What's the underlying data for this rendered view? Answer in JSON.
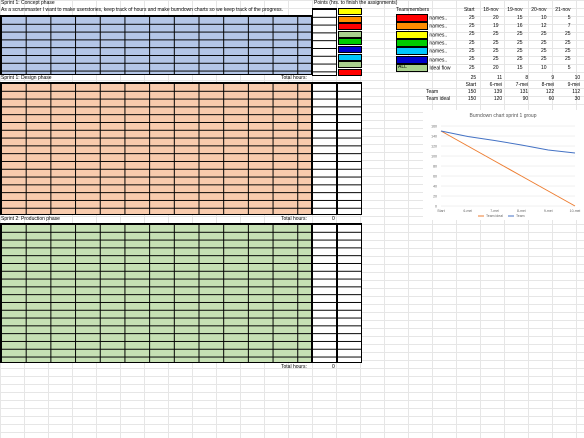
{
  "sheet": {
    "sprint1_concept_title": "Sprint 1: Concept phase",
    "user_story": "As a scrummaster I want to make userstories, keep track of hours and make burndown charts so we keep track of the progress.",
    "points_header": "Points (hrs. to finish the assignments)",
    "sprint1_design_title": "Sprint 1: Design phase",
    "sprint2_production_title": "Sprint 2: Production phase",
    "total_hours_label": "Total hours:",
    "design_total_value": "",
    "production_total_value": "0",
    "bottom_total_value": "0"
  },
  "team_table": {
    "headers": [
      "Teammembers",
      "Start",
      "18-nov",
      "19-nov",
      "20-nov",
      "21-nov"
    ],
    "rows": [
      {
        "name": "names..",
        "color": "#ff0000",
        "values": [
          "25",
          "20",
          "15",
          "10",
          "5"
        ]
      },
      {
        "name": "names..",
        "color": "#ff8c00",
        "values": [
          "25",
          "19",
          "16",
          "12",
          "7"
        ]
      },
      {
        "name": "names..",
        "color": "#ffff00",
        "values": [
          "25",
          "25",
          "25",
          "25",
          "25"
        ]
      },
      {
        "name": "names..",
        "color": "#00cc00",
        "values": [
          "25",
          "25",
          "25",
          "25",
          "25"
        ]
      },
      {
        "name": "names..",
        "color": "#00c8ff",
        "values": [
          "25",
          "25",
          "25",
          "25",
          "25"
        ]
      },
      {
        "name": "names..",
        "color": "#0000cc",
        "values": [
          "25",
          "25",
          "25",
          "25",
          "25"
        ]
      },
      {
        "name": "ALL",
        "color": "#a8d08d",
        "label2": "Ideal flow",
        "values": [
          "25",
          "20",
          "15",
          "10",
          "5"
        ]
      }
    ]
  },
  "summary_table": {
    "top_row": [
      "25",
      "11",
      "8",
      "9",
      "10"
    ],
    "headers": [
      "Start",
      "6-mei",
      "7-mei",
      "8-mei",
      "9-mei"
    ],
    "rows": [
      {
        "label": "Team",
        "values": [
          "150",
          "139",
          "131",
          "122",
          "112"
        ]
      },
      {
        "label": "Team ideal",
        "values": [
          "150",
          "120",
          "90",
          "60",
          "30"
        ]
      }
    ]
  },
  "chart_data": {
    "type": "line",
    "title": "Burndown chart sprint 1 group",
    "categories": [
      "Start",
      "6-mei",
      "7-mei",
      "8-mei",
      "9-mei",
      "10-mei"
    ],
    "series": [
      {
        "name": "Team ideal",
        "color": "#ed7d31",
        "values": [
          150,
          120,
          90,
          60,
          30,
          0
        ]
      },
      {
        "name": "Team",
        "color": "#4472c4",
        "values": [
          150,
          139,
          131,
          122,
          112,
          106
        ]
      }
    ],
    "ylim": [
      0,
      160
    ],
    "yticks": [
      "0",
      "20",
      "40",
      "60",
      "80",
      "100",
      "120",
      "140",
      "160"
    ],
    "grid": true,
    "legend": "bottom"
  },
  "column_colors": {
    "concept": "#b4c6e7",
    "design": "#f8cbad",
    "production": "#c6e0b4",
    "points_column": [
      "#ffff00",
      "#ff8c00",
      "#ff0000",
      "#a8d08d",
      "#00cc00",
      "#0000cc",
      "#00c8ff",
      "#a8d08d",
      "#ff0000"
    ]
  }
}
